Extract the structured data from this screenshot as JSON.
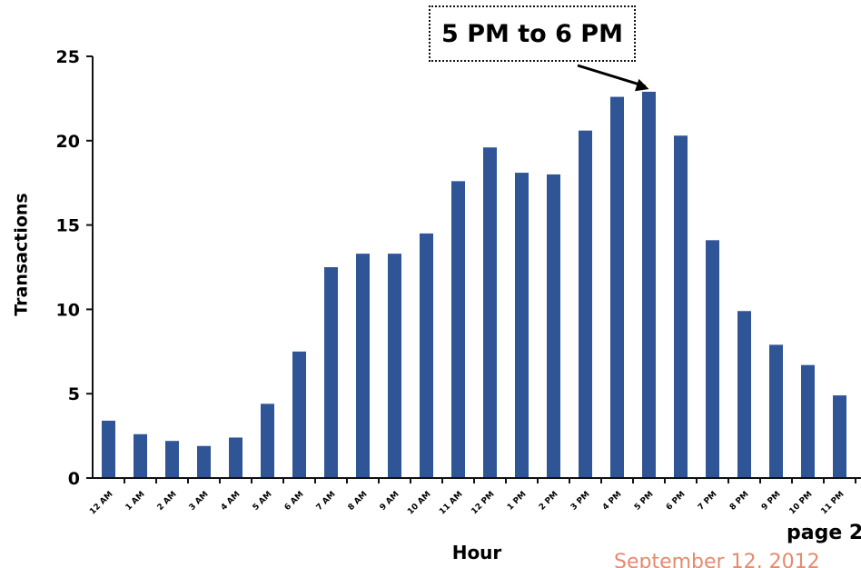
{
  "chart_data": {
    "type": "bar",
    "xlabel": "Hour",
    "ylabel": "Transactions",
    "ylim": [
      0,
      25
    ],
    "yticks": [
      0,
      5,
      10,
      15,
      20,
      25
    ],
    "grid": false,
    "bar_color": "#2f5597",
    "categories": [
      "12 AM",
      "1 AM",
      "2 AM",
      "3 AM",
      "4 AM",
      "5 AM",
      "6 AM",
      "7 AM",
      "8 AM",
      "9 AM",
      "10 AM",
      "11 AM",
      "12 PM",
      "1 PM",
      "2 PM",
      "3 PM",
      "4 PM",
      "5 PM",
      "6 PM",
      "7 PM",
      "8 PM",
      "9 PM",
      "10 PM",
      "11 PM"
    ],
    "values": [
      3.4,
      2.6,
      2.2,
      1.9,
      2.4,
      4.4,
      7.5,
      12.5,
      13.3,
      13.3,
      14.5,
      17.6,
      19.6,
      18.1,
      18.0,
      20.6,
      22.6,
      22.9,
      20.3,
      14.1,
      9.9,
      7.9,
      6.7,
      4.9
    ],
    "annotation": {
      "text": "5 PM to 6 PM",
      "target_category": "5 PM"
    }
  },
  "footer": {
    "page": "page 2",
    "date": "September 12, 2012"
  }
}
